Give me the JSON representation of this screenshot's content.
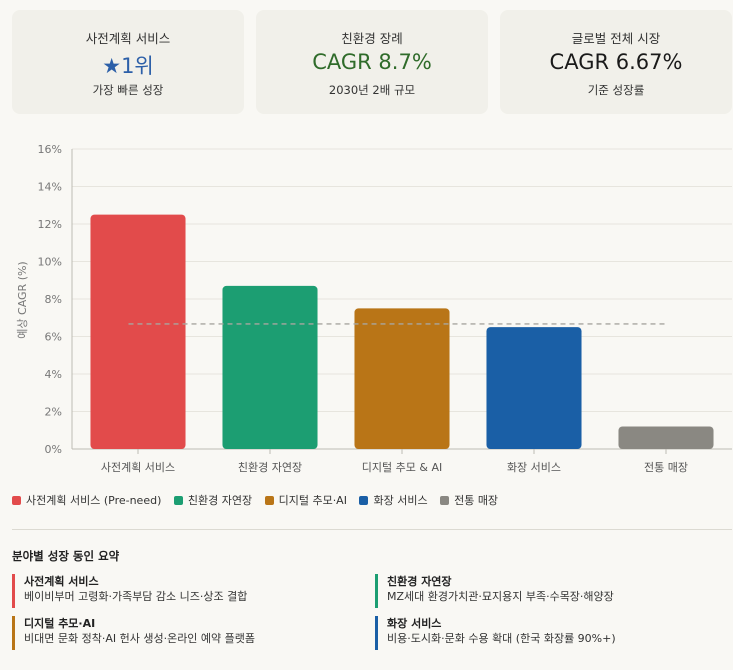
{
  "cards": [
    {
      "title": "사전계획 서비스",
      "star": "★",
      "value": "1위",
      "sub": "가장 빠른 성장",
      "color": "#2c5fa8"
    },
    {
      "title": "친환경 장례",
      "value": "CAGR 8.7%",
      "sub": "2030년 2배 규모",
      "color": "#2f6b2a"
    },
    {
      "title": "글로벌 전체 시장",
      "value": "CAGR 6.67%",
      "sub": "기준 성장률",
      "color": "#1a1a1a"
    }
  ],
  "chart_data": {
    "type": "bar",
    "categories": [
      "사전계획 서비스",
      "친환경 자연장",
      "디지털 추모 & AI",
      "화장 서비스",
      "전통 매장"
    ],
    "values": [
      12.5,
      8.7,
      7.5,
      6.5,
      1.2
    ],
    "colors": [
      "#e24b4b",
      "#1c9e72",
      "#b97517",
      "#1a5fa6",
      "#8a8882"
    ],
    "ylabel": "예상 CAGR (%)",
    "ylim": [
      0,
      16
    ],
    "yticks": [
      "0%",
      "2%",
      "4%",
      "6%",
      "8%",
      "10%",
      "12%",
      "14%",
      "16%"
    ],
    "reference_line": 6.67,
    "grid": true,
    "legend": [
      {
        "label": "사전계획 서비스 (Pre-need)",
        "color": "#e24b4b"
      },
      {
        "label": "친환경 자연장",
        "color": "#1c9e72"
      },
      {
        "label": "디지털 추모·AI",
        "color": "#b97517"
      },
      {
        "label": "화장 서비스",
        "color": "#1a5fa6"
      },
      {
        "label": "전통 매장",
        "color": "#8a8882"
      }
    ],
    "legend_position": "bottom"
  },
  "summary": {
    "title": "분야별 성장 동인 요약",
    "factors": [
      {
        "title": "사전계획 서비스",
        "desc": "베이비부머 고령화·가족부담 감소 니즈·상조 결합",
        "color": "#e24b4b"
      },
      {
        "title": "친환경 자연장",
        "desc": "MZ세대 환경가치관·묘지용지 부족·수목장·해양장",
        "color": "#1c9e72"
      },
      {
        "title": "디지털 추모·AI",
        "desc": "비대면 문화 정착·AI 헌사 생성·온라인 예약 플랫폼",
        "color": "#b97517"
      },
      {
        "title": "화장 서비스",
        "desc": "비용·도시화·문화 수용 확대 (한국 화장률 90%+)",
        "color": "#1a5fa6"
      }
    ]
  }
}
